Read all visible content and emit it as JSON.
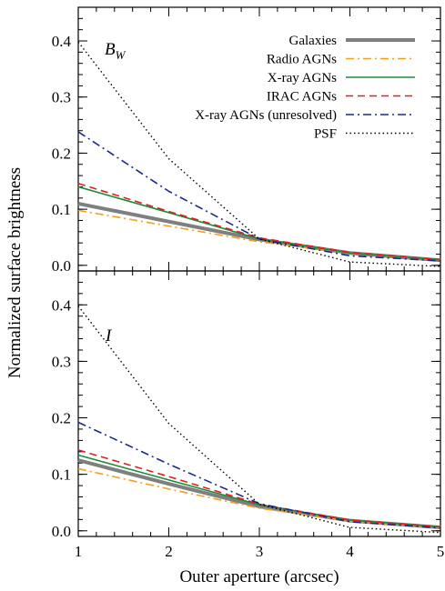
{
  "chart_data": [
    {
      "type": "line",
      "panel_label": "B",
      "panel_label_sub": "W",
      "x": [
        1,
        2,
        3,
        4,
        5
      ],
      "xlim": [
        1,
        5
      ],
      "ylim": [
        -0.01,
        0.46
      ],
      "yticks": [
        0.0,
        0.1,
        0.2,
        0.3,
        0.4
      ],
      "ytick_labels": [
        "0.0",
        "0.1",
        "0.2",
        "0.3",
        "0.4"
      ],
      "series": [
        {
          "name": "Galaxies",
          "color": "#7f7f7f",
          "style": "solid-thick",
          "values": [
            0.11,
            0.078,
            0.046,
            0.022,
            0.009
          ]
        },
        {
          "name": "Radio AGNs",
          "color": "#f0a020",
          "style": "dashdot",
          "values": [
            0.098,
            0.07,
            0.042,
            0.022,
            0.009
          ]
        },
        {
          "name": "X-ray AGNs",
          "color": "#1a8c3a",
          "style": "solid",
          "values": [
            0.14,
            0.094,
            0.047,
            0.022,
            0.01
          ]
        },
        {
          "name": "IRAC AGNs",
          "color": "#e02020",
          "style": "dashed",
          "values": [
            0.146,
            0.096,
            0.049,
            0.023,
            0.01
          ]
        },
        {
          "name": "X-ray AGNs (unresolved)",
          "color": "#1a2a8c",
          "style": "dashdot",
          "values": [
            0.238,
            0.132,
            0.047,
            0.017,
            0.008
          ]
        },
        {
          "name": "PSF",
          "color": "#000000",
          "style": "dotted",
          "values": [
            0.398,
            0.19,
            0.047,
            0.006,
            -0.002
          ]
        }
      ]
    },
    {
      "type": "line",
      "panel_label": "I",
      "panel_label_sub": "",
      "x": [
        1,
        2,
        3,
        4,
        5
      ],
      "xlim": [
        1,
        5
      ],
      "xlabel": "Outer aperture (arcsec)",
      "xtick_labels": [
        "1",
        "2",
        "3",
        "4",
        "5"
      ],
      "ylim": [
        -0.01,
        0.46
      ],
      "yticks": [
        0.0,
        0.1,
        0.2,
        0.3,
        0.4
      ],
      "ytick_labels": [
        "0.0",
        "0.1",
        "0.2",
        "0.3",
        "0.4"
      ],
      "series": [
        {
          "name": "Galaxies",
          "color": "#7f7f7f",
          "style": "solid-thick",
          "values": [
            0.125,
            0.083,
            0.043,
            0.018,
            0.006
          ]
        },
        {
          "name": "Radio AGNs",
          "color": "#f0a020",
          "style": "dashdot",
          "values": [
            0.11,
            0.074,
            0.04,
            0.017,
            0.006
          ]
        },
        {
          "name": "X-ray AGNs",
          "color": "#1a8c3a",
          "style": "solid",
          "values": [
            0.134,
            0.09,
            0.046,
            0.019,
            0.007
          ]
        },
        {
          "name": "IRAC AGNs",
          "color": "#e02020",
          "style": "dashed",
          "values": [
            0.143,
            0.096,
            0.047,
            0.019,
            0.007
          ]
        },
        {
          "name": "X-ray AGNs (unresolved)",
          "color": "#1a2a8c",
          "style": "dashdot",
          "values": [
            0.192,
            0.118,
            0.048,
            0.016,
            0.005
          ]
        },
        {
          "name": "PSF",
          "color": "#000000",
          "style": "dotted",
          "values": [
            0.398,
            0.19,
            0.047,
            0.006,
            -0.003
          ]
        }
      ]
    }
  ],
  "ylabel": "Normalized surface brightness",
  "legend_placement": "top-right of upper panel"
}
